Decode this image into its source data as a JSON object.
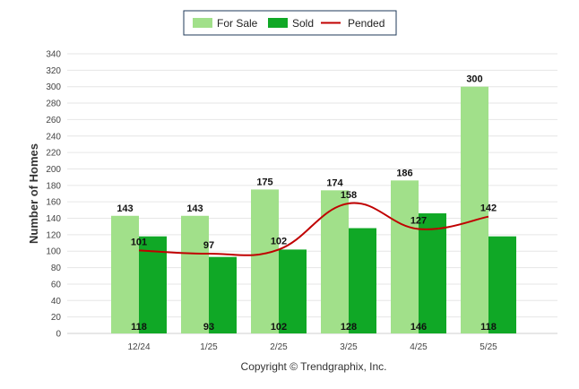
{
  "legend": {
    "for_sale": "For Sale",
    "sold": "Sold",
    "pended": "Pended"
  },
  "copyright": "Copyright © Trendgraphix, Inc.",
  "colors": {
    "for_sale": "#a1e08a",
    "sold": "#10a826",
    "pended": "#c00000"
  },
  "chart_data": {
    "type": "bar",
    "categories": [
      "12/24",
      "1/25",
      "2/25",
      "3/25",
      "4/25",
      "5/25"
    ],
    "series": [
      {
        "name": "For Sale",
        "type": "bar",
        "values": [
          143,
          143,
          175,
          174,
          186,
          300
        ]
      },
      {
        "name": "Sold",
        "type": "bar",
        "values": [
          118,
          93,
          102,
          128,
          146,
          118
        ]
      },
      {
        "name": "Pended",
        "type": "line",
        "values": [
          101,
          97,
          102,
          158,
          127,
          142
        ]
      }
    ],
    "title": "",
    "xlabel": "",
    "ylabel": "Number of Homes",
    "ylim": [
      0,
      340
    ],
    "yticks": [
      0,
      20,
      40,
      60,
      80,
      100,
      120,
      140,
      160,
      180,
      200,
      220,
      240,
      260,
      280,
      300,
      320,
      340
    ],
    "grid": true,
    "legend_position": "top-center"
  }
}
